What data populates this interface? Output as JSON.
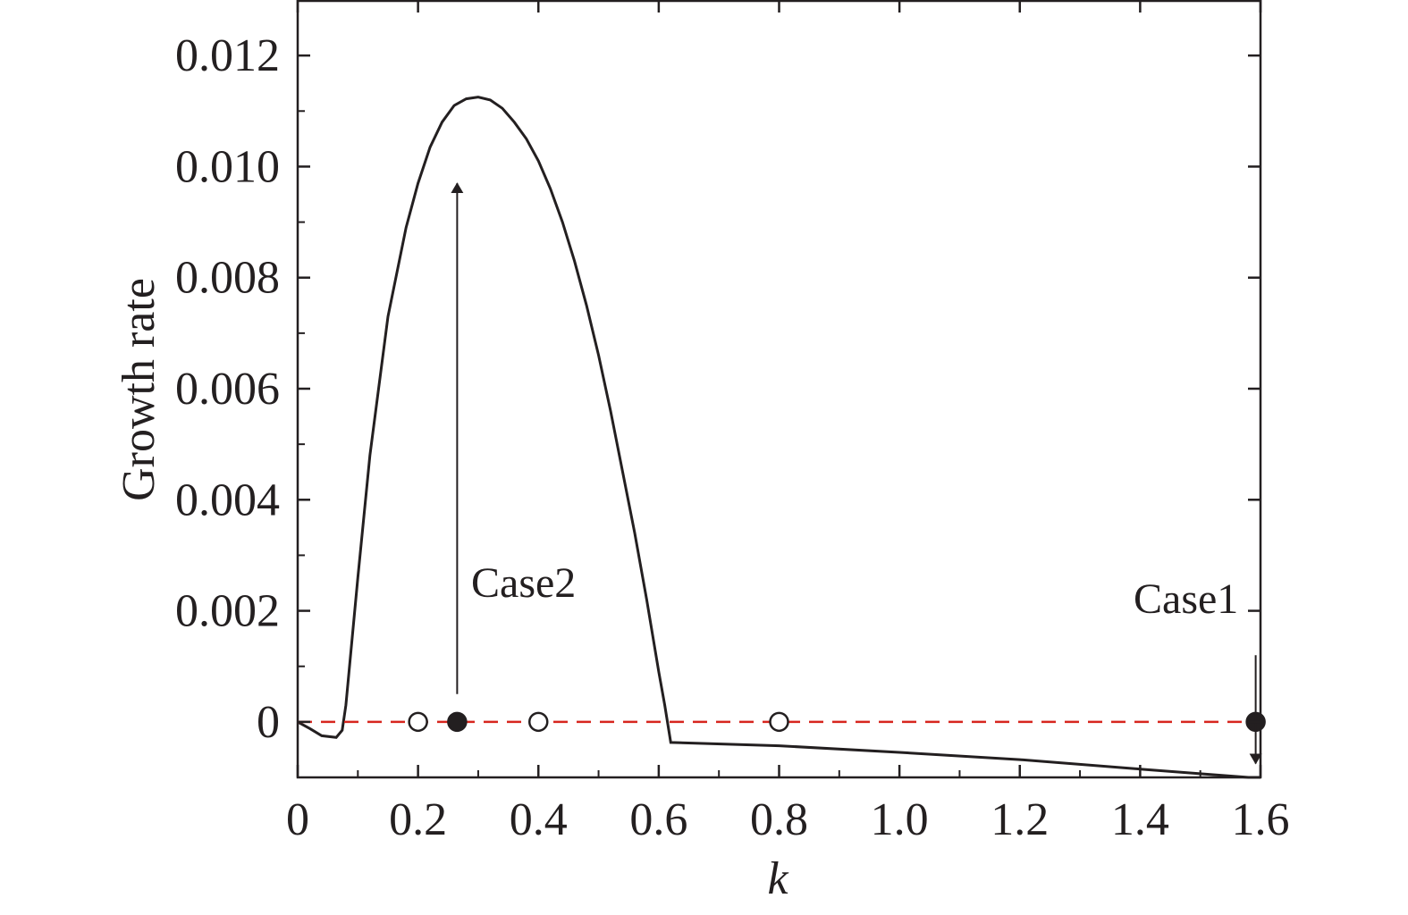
{
  "chart_data": {
    "type": "line",
    "xlabel": "k",
    "ylabel": "Growth rate",
    "xlim": [
      0,
      1.6
    ],
    "ylim": [
      -0.001,
      0.013
    ],
    "x_ticks": [
      0,
      0.2,
      0.4,
      0.6,
      0.8,
      1.0,
      1.2,
      1.4,
      1.6
    ],
    "x_tick_labels": [
      "0",
      "0.2",
      "0.4",
      "0.6",
      "0.8",
      "1.0",
      "1.2",
      "1.4",
      "1.6"
    ],
    "y_ticks": [
      0,
      0.002,
      0.004,
      0.006,
      0.008,
      0.01,
      0.012
    ],
    "y_tick_labels": [
      "0",
      "0.002",
      "0.004",
      "0.006",
      "0.008",
      "0.010",
      "0.012"
    ],
    "grid": false,
    "series": [
      {
        "style": "solid",
        "color": "#231f20",
        "x": [
          0,
          0.02,
          0.04,
          0.064,
          0.074,
          0.08,
          0.1,
          0.12,
          0.15,
          0.18,
          0.2,
          0.22,
          0.24,
          0.26,
          0.28,
          0.3,
          0.32,
          0.34,
          0.36,
          0.38,
          0.4,
          0.42,
          0.44,
          0.46,
          0.48,
          0.5,
          0.52,
          0.54,
          0.56,
          0.58,
          0.6,
          0.61,
          0.62,
          0.8,
          1.0,
          1.2,
          1.4,
          1.58,
          1.6
        ],
        "y": [
          0,
          -0.00012,
          -0.00025,
          -0.00028,
          -0.00015,
          0.0003,
          0.0026,
          0.0048,
          0.0073,
          0.0089,
          0.0097,
          0.01035,
          0.0108,
          0.0111,
          0.01122,
          0.01125,
          0.0112,
          0.01105,
          0.0108,
          0.0105,
          0.0101,
          0.0096,
          0.009,
          0.0083,
          0.0075,
          0.0066,
          0.0056,
          0.0045,
          0.0034,
          0.0022,
          0.0009,
          0.0003,
          -0.00037,
          -0.00043,
          -0.00055,
          -0.00068,
          -0.00085,
          -0.001,
          -0.001
        ]
      },
      {
        "style": "dashed",
        "color": "#d7261e",
        "x": [
          0,
          1.6
        ],
        "y": [
          0,
          0
        ]
      }
    ],
    "markers": [
      {
        "x": 0.2,
        "y": 0,
        "filled": false
      },
      {
        "x": 0.265,
        "y": 0,
        "filled": true
      },
      {
        "x": 0.4,
        "y": 0,
        "filled": false
      },
      {
        "x": 0.8,
        "y": 0,
        "filled": false
      },
      {
        "x": 1.592,
        "y": 0,
        "filled": true
      }
    ],
    "annotations": [
      {
        "text": "Case2",
        "arrow": "up",
        "x": 0.265,
        "y_from": 0.0005,
        "y_to": 0.0097
      },
      {
        "text": "Case1",
        "arrow": "down",
        "x": 1.592,
        "y_from": 0.0012,
        "y_to": -0.00075
      }
    ]
  }
}
